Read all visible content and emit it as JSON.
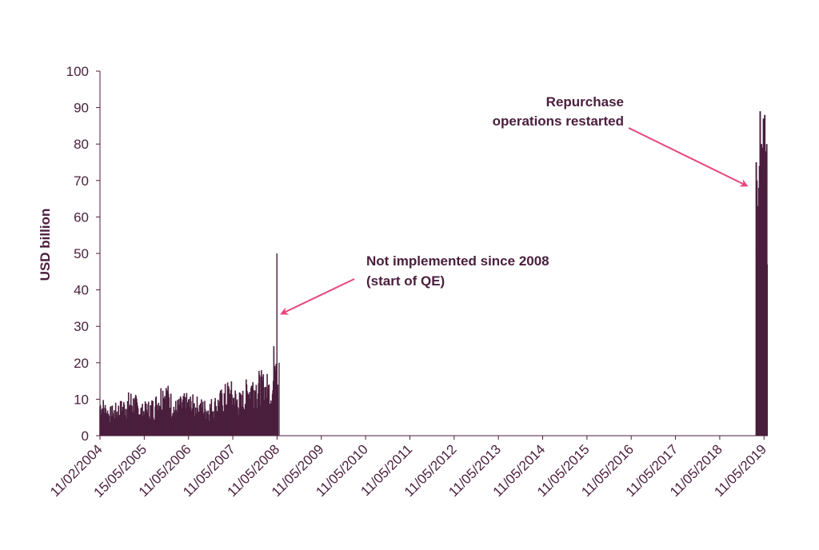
{
  "chart_data": {
    "type": "bar",
    "title": "",
    "xlabel": "",
    "ylabel": "USD billion",
    "ylim": [
      0,
      100
    ],
    "yticks": [
      0,
      10,
      20,
      30,
      40,
      50,
      60,
      70,
      80,
      90,
      100
    ],
    "x_range": [
      "2004-02-11",
      "2019-06-20"
    ],
    "xtick_labels": [
      "11/02/2004",
      "15/05/2005",
      "11/05/2006",
      "11/05/2007",
      "11/05/2008",
      "11/05/2009",
      "11/05/2010",
      "11/05/2011",
      "11/05/2012",
      "11/05/2013",
      "11/05/2014",
      "11/05/2015",
      "11/05/2016",
      "11/05/2017",
      "11/05/2018",
      "11/05/2019"
    ],
    "grid": false,
    "legend": "none",
    "bar_color": "#4a1e3d",
    "series": [
      {
        "values_approx": [
          {
            "x": "2004-02-11",
            "y": 12
          },
          {
            "x": "2004-05-01",
            "y": 8
          },
          {
            "x": "2004-08-01",
            "y": 10
          },
          {
            "x": "2004-11-01",
            "y": 13
          },
          {
            "x": "2005-02-01",
            "y": 9
          },
          {
            "x": "2005-05-15",
            "y": 11
          },
          {
            "x": "2005-08-01",
            "y": 17
          },
          {
            "x": "2005-11-01",
            "y": 10
          },
          {
            "x": "2006-02-01",
            "y": 12
          },
          {
            "x": "2006-05-11",
            "y": 11
          },
          {
            "x": "2006-08-01",
            "y": 10
          },
          {
            "x": "2006-11-01",
            "y": 12
          },
          {
            "x": "2007-02-01",
            "y": 16
          },
          {
            "x": "2007-05-11",
            "y": 12
          },
          {
            "x": "2007-08-01",
            "y": 19
          },
          {
            "x": "2007-11-01",
            "y": 18
          },
          {
            "x": "2008-02-01",
            "y": 17
          },
          {
            "x": "2008-03-07",
            "y": 50
          },
          {
            "x": "2008-03-25",
            "y": 20
          },
          {
            "x": "2019-03-01",
            "y": 0
          },
          {
            "x": "2019-03-20",
            "y": 75
          },
          {
            "x": "2019-04-01",
            "y": 63
          },
          {
            "x": "2019-04-15",
            "y": 89
          },
          {
            "x": "2019-05-01",
            "y": 77
          },
          {
            "x": "2019-05-11",
            "y": 80
          },
          {
            "x": "2019-05-25",
            "y": 72
          },
          {
            "x": "2019-06-05",
            "y": 87
          },
          {
            "x": "2019-06-15",
            "y": 88
          }
        ]
      }
    ],
    "annotations": [
      {
        "lines": [
          "Not implemented since 2008",
          "(start of QE)"
        ],
        "points_to": {
          "x": "2008-03-25",
          "y": 33
        }
      },
      {
        "lines": [
          "Repurchase",
          "operations restarted"
        ],
        "points_to": {
          "x": "2019-03-10",
          "y": 69
        }
      }
    ],
    "arrow_color": "#e8457a"
  }
}
